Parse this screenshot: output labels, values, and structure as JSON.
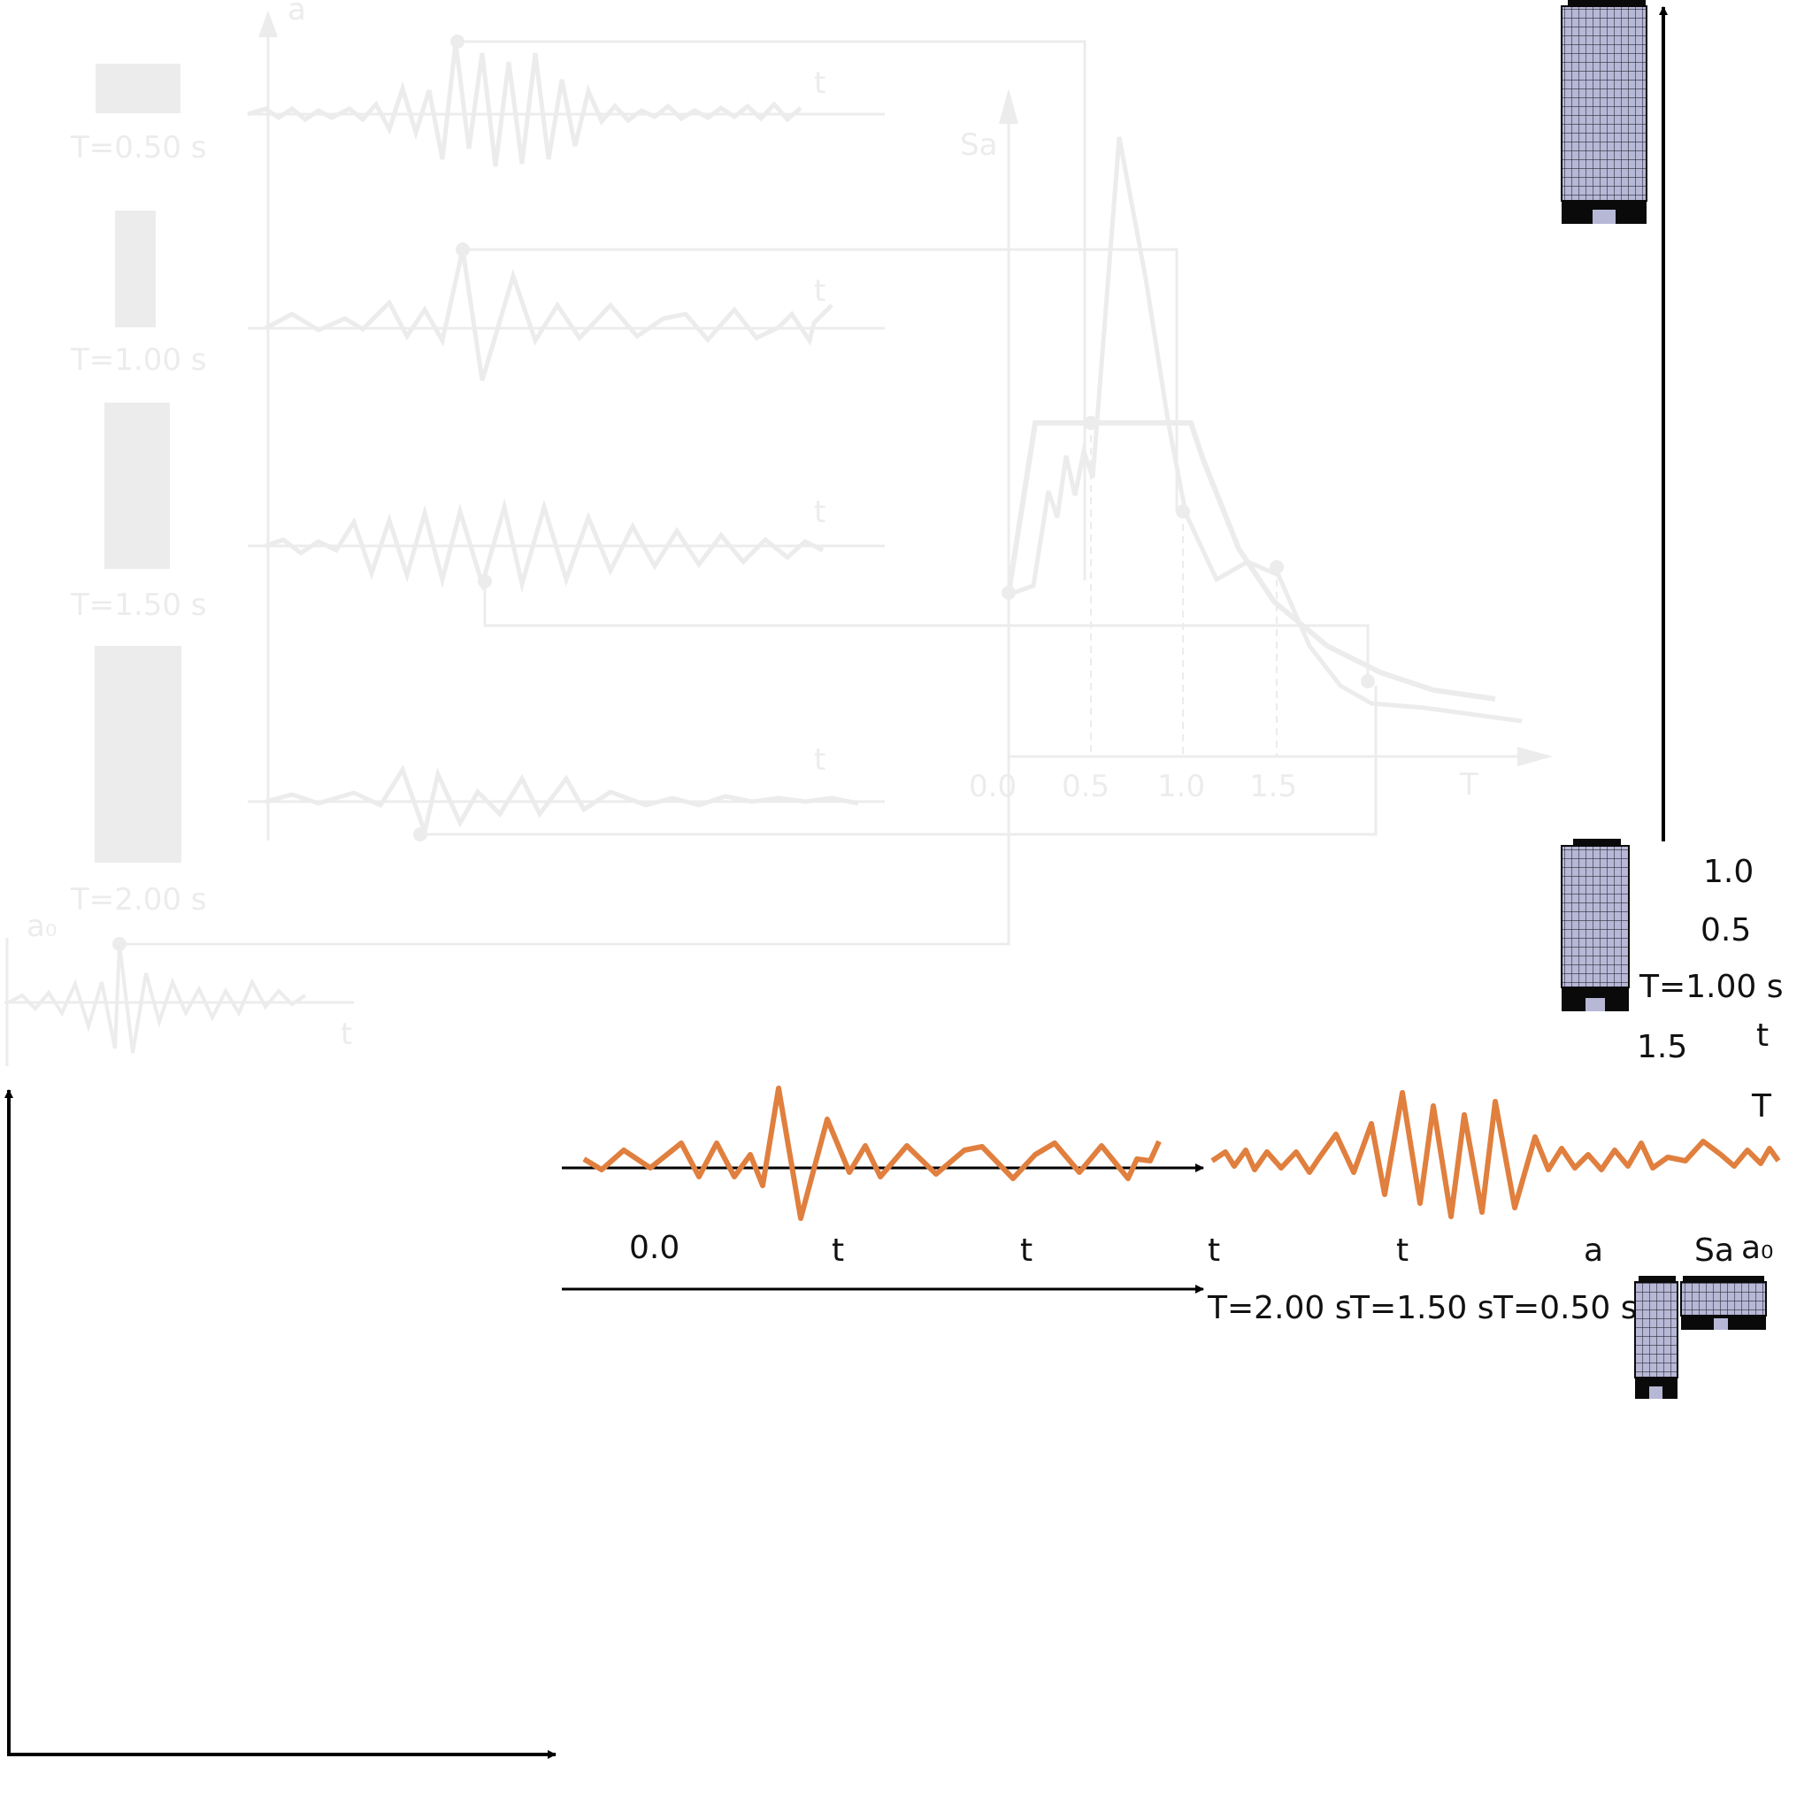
{
  "colors": {
    "ghost": "#ececec",
    "accent": "#e07f3e",
    "axis": "#000000",
    "building_face": "#b7b7d6",
    "building_dark": "#0a0a0a"
  },
  "ghost_panel": {
    "acc_axis_label": "a",
    "time_axis_labels": [
      "t",
      "t",
      "t",
      "t",
      "t"
    ],
    "period_labels": [
      "T=0.50 s",
      "T=1.00 s",
      "T=1.50 s",
      "T=2.00 s"
    ],
    "ground_label": "a₀",
    "spectrum_axis_label": "Sa",
    "spectrum_period_axis_label": "T",
    "spectrum_ticks": [
      "0.0",
      "0.5",
      "1.0",
      "1.5"
    ]
  },
  "labels": {
    "tick_1_0": "1.0",
    "tick_0_5": "0.5",
    "period_1_00": "T=1.00 s",
    "t_right": "t",
    "tick_1_5": "1.5",
    "T_axis": "T",
    "row_0_0": "0.0",
    "row_t1": "t",
    "row_t2": "t",
    "row_t3": "t",
    "row_t4": "t",
    "row_a": "a",
    "row_Sa": "Sa",
    "row_a0": "a₀",
    "period_2_00": "T=2.00 s",
    "period_1_50": "T=1.50 s",
    "period_0_50": "T=0.50 s"
  },
  "icons": {
    "tall_building": "building-icon",
    "medium_building": "building-icon",
    "short_building": "building-icon",
    "low_building": "building-icon"
  }
}
